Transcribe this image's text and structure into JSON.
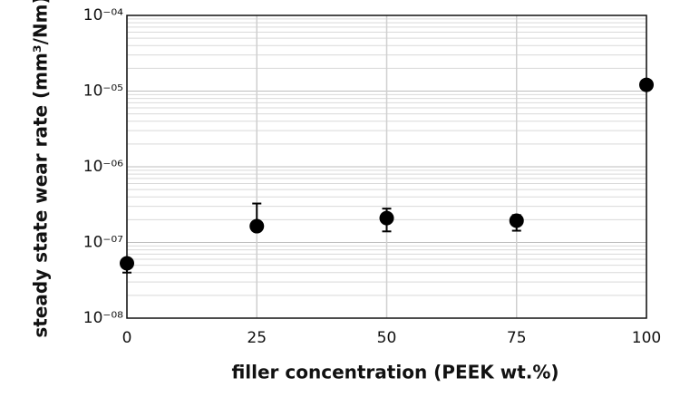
{
  "chart_data": {
    "type": "scatter",
    "x_label": "filler concentration (PEEK wt.%)",
    "y_label": "steady state wear rate (mm³/Nm)",
    "x": [
      0,
      25,
      50,
      75,
      100
    ],
    "values": [
      5.3e-08,
      1.64e-07,
      2.1e-07,
      1.94e-07,
      1.21e-05
    ],
    "err_lower": [
      4e-08,
      null,
      1.4e-07,
      1.43e-07,
      null
    ],
    "err_upper": [
      null,
      3.27e-07,
      2.8e-07,
      2.3e-07,
      null
    ],
    "color": "#000000",
    "xlim": [
      0,
      100
    ],
    "xticks": [
      0,
      25,
      50,
      75,
      100
    ],
    "ylim": [
      1e-08,
      0.0001
    ],
    "yticks": [
      {
        "value": 1e-08,
        "label": "10⁻⁰⁸"
      },
      {
        "value": 1e-07,
        "label": "10⁻⁰⁷"
      },
      {
        "value": 1e-06,
        "label": "10⁻⁰⁶"
      },
      {
        "value": 1e-05,
        "label": "10⁻⁰⁵"
      },
      {
        "value": 0.0001,
        "label": "10⁻⁰⁴"
      }
    ],
    "yscale": "log",
    "grid": true,
    "minor_grid": true
  }
}
